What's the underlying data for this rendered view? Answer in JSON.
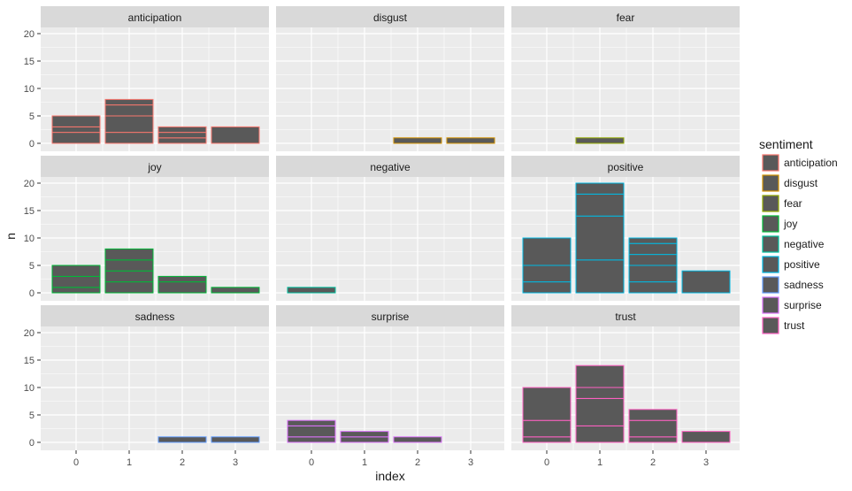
{
  "chart_data": {
    "type": "bar",
    "chart_style": "faceted stacked histogram",
    "xlabel": "index",
    "ylabel": "n",
    "x_ticks": [
      "0",
      "1",
      "2",
      "3"
    ],
    "y_ticks": [
      "0",
      "5",
      "10",
      "15",
      "20"
    ],
    "ylim": [
      0,
      20
    ],
    "legend": {
      "title": "sentiment",
      "position": "right",
      "entries": [
        "anticipation",
        "disgust",
        "fear",
        "joy",
        "negative",
        "positive",
        "sadness",
        "surprise",
        "trust"
      ]
    },
    "colors": {
      "anticipation": "#F8766D",
      "disgust": "#D39200",
      "fear": "#93AA00",
      "joy": "#00BA38",
      "negative": "#00C19F",
      "positive": "#00B9E3",
      "sadness": "#619CFF",
      "surprise": "#DB72FB",
      "trust": "#FF61C3",
      "bar_fill": "#595959",
      "panel_bg": "#EBEBEB",
      "strip_bg": "#D9D9D9",
      "grid": "#FFFFFF"
    },
    "panels": [
      {
        "name": "anticipation",
        "bars": [
          {
            "x": 0,
            "segments": [
              2,
              1,
              2
            ]
          },
          {
            "x": 1,
            "segments": [
              2,
              3,
              2,
              1
            ]
          },
          {
            "x": 2,
            "segments": [
              1,
              1,
              1
            ]
          },
          {
            "x": 3,
            "segments": [
              3
            ]
          }
        ]
      },
      {
        "name": "disgust",
        "bars": [
          {
            "x": 2,
            "segments": [
              1
            ]
          },
          {
            "x": 3,
            "segments": [
              1
            ]
          }
        ]
      },
      {
        "name": "fear",
        "bars": [
          {
            "x": 1,
            "segments": [
              1
            ]
          }
        ]
      },
      {
        "name": "joy",
        "bars": [
          {
            "x": 0,
            "segments": [
              1,
              2,
              2
            ]
          },
          {
            "x": 1,
            "segments": [
              2,
              2,
              2,
              2
            ]
          },
          {
            "x": 2,
            "segments": [
              2,
              1
            ]
          },
          {
            "x": 3,
            "segments": [
              1
            ]
          }
        ]
      },
      {
        "name": "negative",
        "bars": [
          {
            "x": 0,
            "segments": [
              1
            ]
          }
        ]
      },
      {
        "name": "positive",
        "bars": [
          {
            "x": 0,
            "segments": [
              2,
              3,
              5
            ]
          },
          {
            "x": 1,
            "segments": [
              6,
              8,
              4,
              2
            ]
          },
          {
            "x": 2,
            "segments": [
              2,
              3,
              2,
              2,
              1
            ]
          },
          {
            "x": 3,
            "segments": [
              4
            ]
          }
        ]
      },
      {
        "name": "sadness",
        "bars": [
          {
            "x": 2,
            "segments": [
              1
            ]
          },
          {
            "x": 3,
            "segments": [
              1
            ]
          }
        ]
      },
      {
        "name": "surprise",
        "bars": [
          {
            "x": 0,
            "segments": [
              1,
              2,
              1
            ]
          },
          {
            "x": 1,
            "segments": [
              1,
              1
            ]
          },
          {
            "x": 2,
            "segments": [
              1
            ]
          }
        ]
      },
      {
        "name": "trust",
        "bars": [
          {
            "x": 0,
            "segments": [
              1,
              3,
              6
            ]
          },
          {
            "x": 1,
            "segments": [
              3,
              5,
              2,
              4
            ]
          },
          {
            "x": 2,
            "segments": [
              1,
              3,
              2
            ]
          },
          {
            "x": 3,
            "segments": [
              2
            ]
          }
        ]
      }
    ]
  }
}
